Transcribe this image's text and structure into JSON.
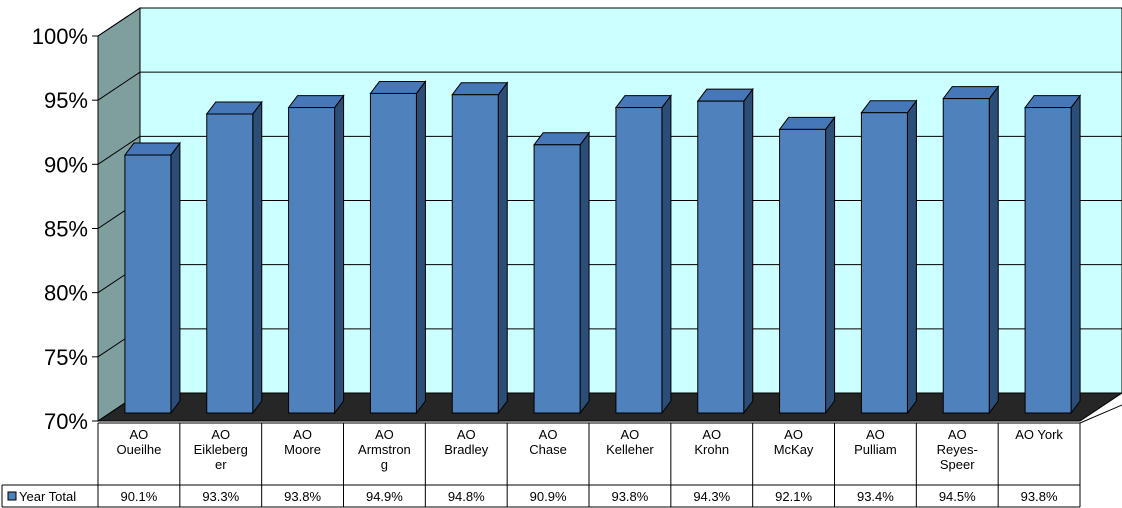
{
  "chart_data": {
    "type": "bar",
    "categories": [
      [
        "AO",
        "Oueilhe"
      ],
      [
        "AO",
        "Eikleberg",
        "er"
      ],
      [
        "AO",
        "Moore"
      ],
      [
        "AO",
        "Armstron",
        "g"
      ],
      [
        "AO",
        "Bradley"
      ],
      [
        "AO",
        "Chase"
      ],
      [
        "AO",
        "Kelleher"
      ],
      [
        "AO",
        "Krohn"
      ],
      [
        "AO",
        "McKay"
      ],
      [
        "AO",
        "Pulliam"
      ],
      [
        "AO",
        "Reyes-",
        "Speer"
      ],
      [
        "AO York"
      ]
    ],
    "series": [
      {
        "name": "Year Total",
        "values": [
          90.1,
          93.3,
          93.8,
          94.9,
          94.8,
          90.9,
          93.8,
          94.3,
          92.1,
          93.4,
          94.5,
          93.8
        ],
        "labels": [
          "90.1%",
          "93.3%",
          "93.8%",
          "94.9%",
          "94.8%",
          "90.9%",
          "93.8%",
          "94.3%",
          "92.1%",
          "93.4%",
          "94.5%",
          "93.8%"
        ]
      }
    ],
    "ylim": [
      70,
      100
    ],
    "yticks": [
      "70%",
      "75%",
      "80%",
      "85%",
      "90%",
      "95%",
      "100%"
    ],
    "grid": true,
    "legend_position": "data-table-left",
    "colors": {
      "bar_front": "#4f81bd",
      "bar_side": "#2c4d75",
      "bar_top": "#4677b8",
      "back_wall": "#ccffff",
      "side_wall": "#7f9f9f",
      "floor": "#262626"
    }
  }
}
